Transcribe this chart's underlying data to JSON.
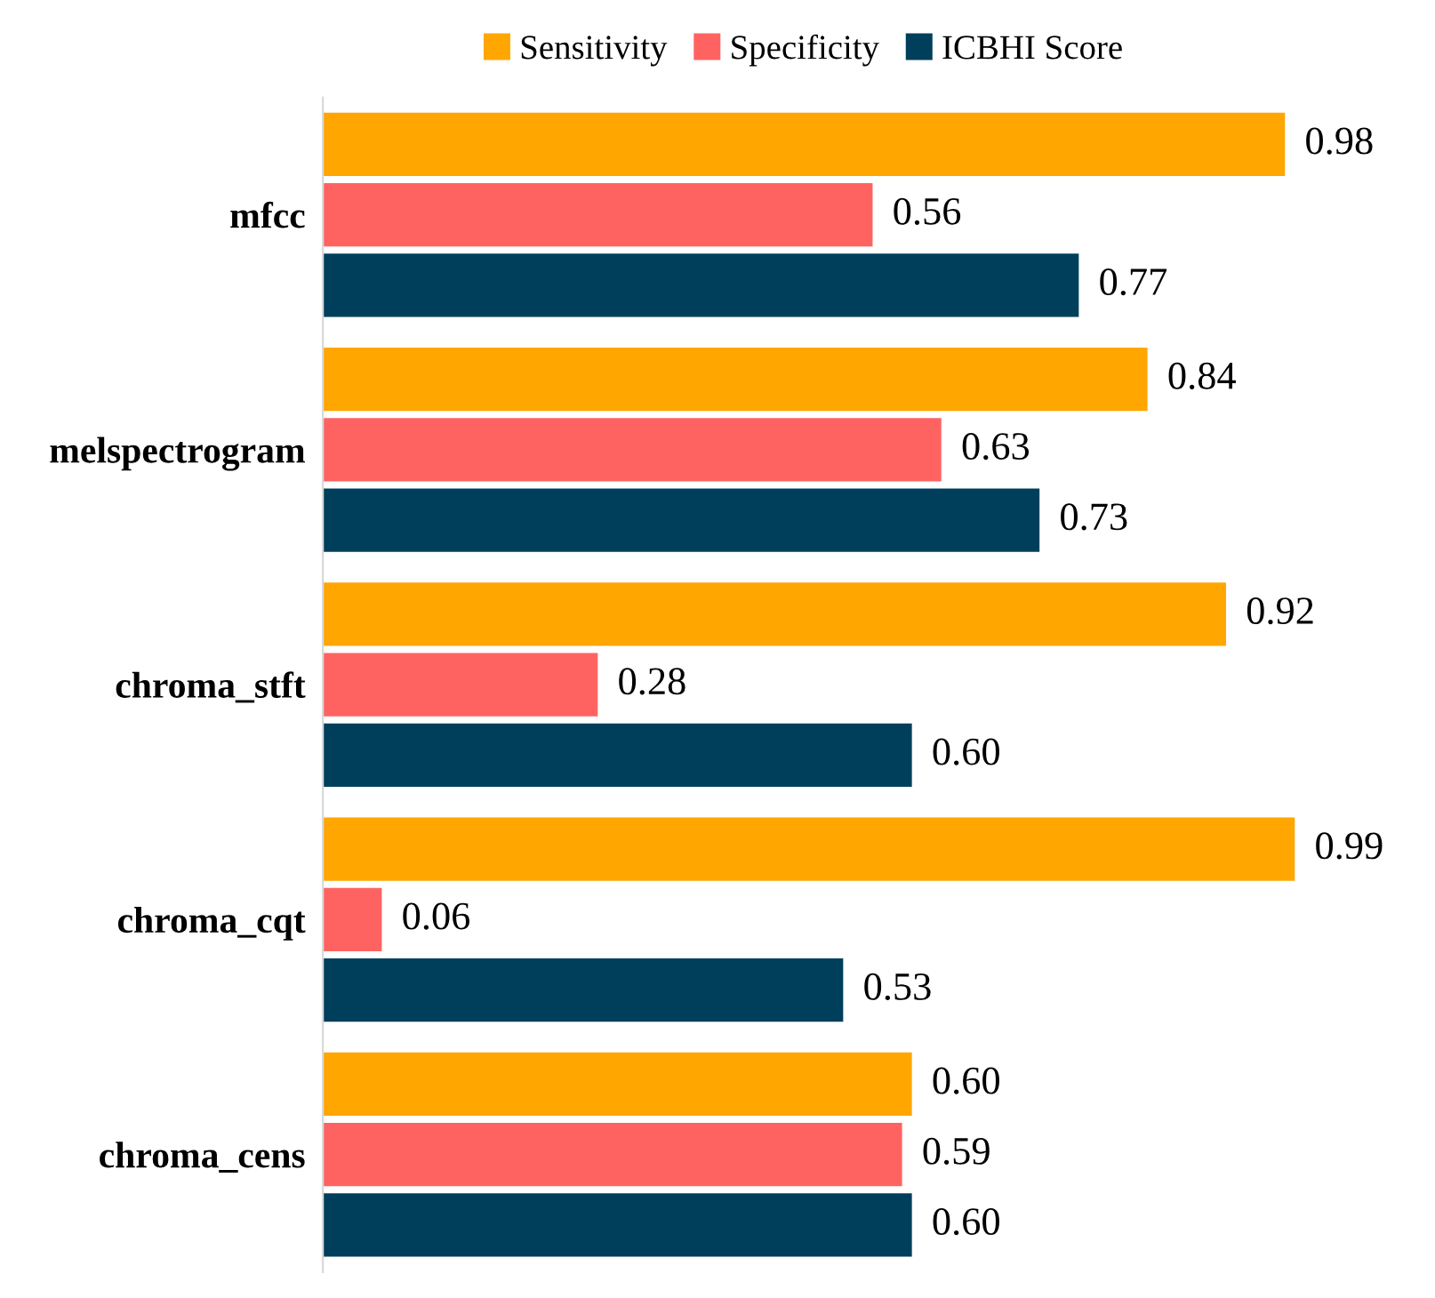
{
  "chart_data": {
    "type": "bar",
    "orientation": "horizontal",
    "categories": [
      "mfcc",
      "melspectrogram",
      "chroma_stft",
      "chroma_cqt",
      "chroma_cens"
    ],
    "series": [
      {
        "name": "Sensitivity",
        "color": "#ffa600",
        "values": [
          0.98,
          0.84,
          0.92,
          0.99,
          0.6
        ],
        "value_labels": [
          "0.98",
          "0.84",
          "0.92",
          "0.99",
          "0.60"
        ]
      },
      {
        "name": "Specificity",
        "color": "#ff6361",
        "values": [
          0.56,
          0.63,
          0.28,
          0.06,
          0.59
        ],
        "value_labels": [
          "0.56",
          "0.63",
          "0.28",
          "0.06",
          "0.59"
        ]
      },
      {
        "name": "ICBHI Score",
        "color": "#003f5c",
        "values": [
          0.77,
          0.73,
          0.6,
          0.53,
          0.6
        ],
        "value_labels": [
          "0.77",
          "0.73",
          "0.60",
          "0.53",
          "0.60"
        ]
      }
    ],
    "tick_labels": "y",
    "grid": false,
    "legend": "top"
  }
}
